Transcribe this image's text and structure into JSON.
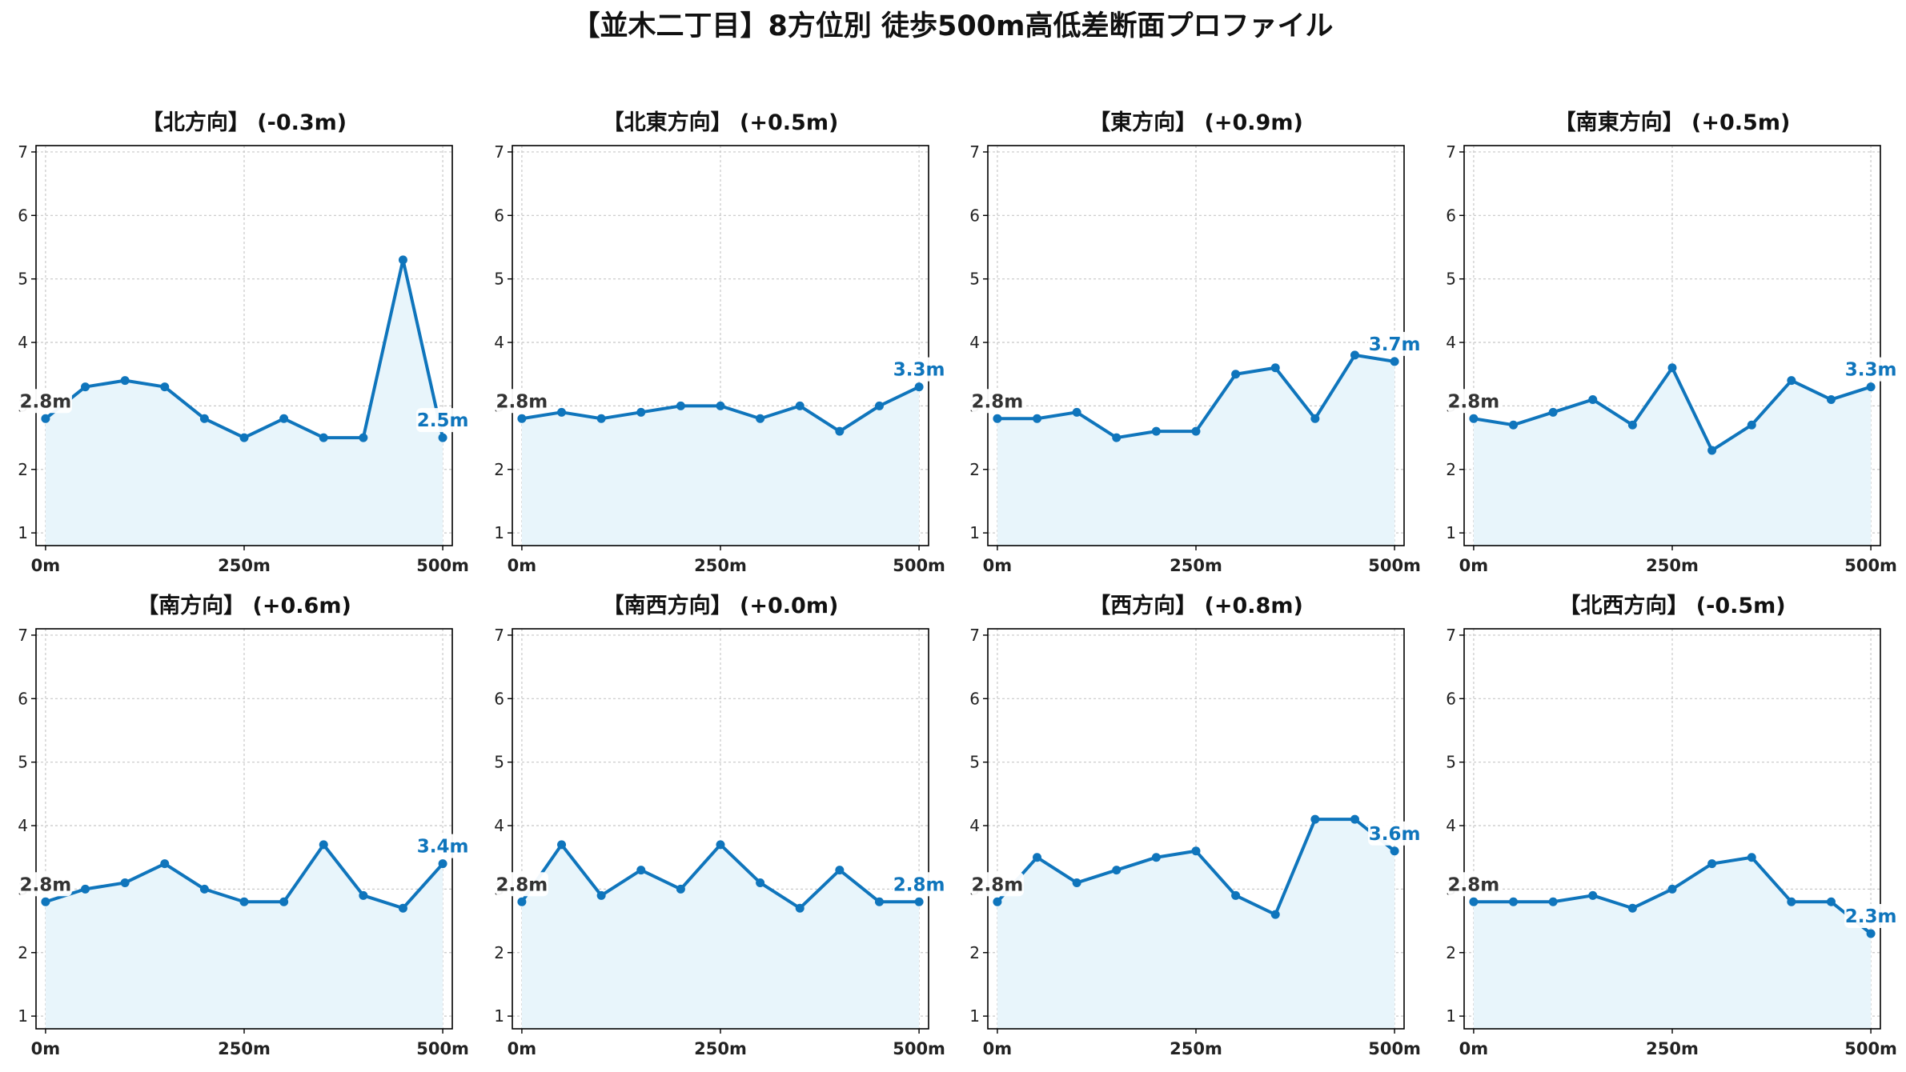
{
  "figure_title": "【並木二丁目】8方位別 徒歩500m高低差断面プロファイル",
  "colors": {
    "line": "#0f75bc",
    "fill": "#e8f5fb",
    "grid": "#c8c8c8",
    "axis": "#000000"
  },
  "chart_data": [
    {
      "type": "area",
      "title": "【北方向】 (-0.3m)",
      "x": [
        0,
        50,
        100,
        150,
        200,
        250,
        300,
        350,
        400,
        450,
        500
      ],
      "y": [
        2.8,
        3.3,
        3.4,
        3.3,
        2.8,
        2.5,
        2.8,
        2.5,
        2.5,
        5.3,
        2.5
      ],
      "xticks": [
        "0m",
        "250m",
        "500m"
      ],
      "yticks": [
        1,
        2,
        3,
        4,
        5,
        6,
        7
      ],
      "ylim": [
        0.8,
        7.1
      ],
      "xlim": [
        -12,
        512
      ],
      "start_label": "2.8m",
      "end_label": "2.5m",
      "grid": true
    },
    {
      "type": "area",
      "title": "【北東方向】 (+0.5m)",
      "x": [
        0,
        50,
        100,
        150,
        200,
        250,
        300,
        350,
        400,
        450,
        500
      ],
      "y": [
        2.8,
        2.9,
        2.8,
        2.9,
        3.0,
        3.0,
        2.8,
        3.0,
        2.6,
        3.0,
        3.3
      ],
      "xticks": [
        "0m",
        "250m",
        "500m"
      ],
      "yticks": [
        1,
        2,
        3,
        4,
        5,
        6,
        7
      ],
      "ylim": [
        0.8,
        7.1
      ],
      "xlim": [
        -12,
        512
      ],
      "start_label": "2.8m",
      "end_label": "3.3m",
      "grid": true
    },
    {
      "type": "area",
      "title": "【東方向】 (+0.9m)",
      "x": [
        0,
        50,
        100,
        150,
        200,
        250,
        300,
        350,
        400,
        450,
        500
      ],
      "y": [
        2.8,
        2.8,
        2.9,
        2.5,
        2.6,
        2.6,
        3.5,
        3.6,
        2.8,
        3.8,
        3.7
      ],
      "xticks": [
        "0m",
        "250m",
        "500m"
      ],
      "yticks": [
        1,
        2,
        3,
        4,
        5,
        6,
        7
      ],
      "ylim": [
        0.8,
        7.1
      ],
      "xlim": [
        -12,
        512
      ],
      "start_label": "2.8m",
      "end_label": "3.7m",
      "grid": true
    },
    {
      "type": "area",
      "title": "【南東方向】 (+0.5m)",
      "x": [
        0,
        50,
        100,
        150,
        200,
        250,
        300,
        350,
        400,
        450,
        500
      ],
      "y": [
        2.8,
        2.7,
        2.9,
        3.1,
        2.7,
        3.6,
        2.3,
        2.7,
        3.4,
        3.1,
        3.3
      ],
      "xticks": [
        "0m",
        "250m",
        "500m"
      ],
      "yticks": [
        1,
        2,
        3,
        4,
        5,
        6,
        7
      ],
      "ylim": [
        0.8,
        7.1
      ],
      "xlim": [
        -12,
        512
      ],
      "start_label": "2.8m",
      "end_label": "3.3m",
      "grid": true
    },
    {
      "type": "area",
      "title": "【南方向】 (+0.6m)",
      "x": [
        0,
        50,
        100,
        150,
        200,
        250,
        300,
        350,
        400,
        450,
        500
      ],
      "y": [
        2.8,
        3.0,
        3.1,
        3.4,
        3.0,
        2.8,
        2.8,
        3.7,
        2.9,
        2.7,
        3.4
      ],
      "xticks": [
        "0m",
        "250m",
        "500m"
      ],
      "yticks": [
        1,
        2,
        3,
        4,
        5,
        6,
        7
      ],
      "ylim": [
        0.8,
        7.1
      ],
      "xlim": [
        -12,
        512
      ],
      "start_label": "2.8m",
      "end_label": "3.4m",
      "grid": true
    },
    {
      "type": "area",
      "title": "【南西方向】 (+0.0m)",
      "x": [
        0,
        50,
        100,
        150,
        200,
        250,
        300,
        350,
        400,
        450,
        500
      ],
      "y": [
        2.8,
        3.7,
        2.9,
        3.3,
        3.0,
        3.7,
        3.1,
        2.7,
        3.3,
        2.8,
        2.8
      ],
      "xticks": [
        "0m",
        "250m",
        "500m"
      ],
      "yticks": [
        1,
        2,
        3,
        4,
        5,
        6,
        7
      ],
      "ylim": [
        0.8,
        7.1
      ],
      "xlim": [
        -12,
        512
      ],
      "start_label": "2.8m",
      "end_label": "2.8m",
      "grid": true
    },
    {
      "type": "area",
      "title": "【西方向】 (+0.8m)",
      "x": [
        0,
        50,
        100,
        150,
        200,
        250,
        300,
        350,
        400,
        450,
        500
      ],
      "y": [
        2.8,
        3.5,
        3.1,
        3.3,
        3.5,
        3.6,
        2.9,
        2.6,
        4.1,
        4.1,
        3.6
      ],
      "xticks": [
        "0m",
        "250m",
        "500m"
      ],
      "yticks": [
        1,
        2,
        3,
        4,
        5,
        6,
        7
      ],
      "ylim": [
        0.8,
        7.1
      ],
      "xlim": [
        -12,
        512
      ],
      "start_label": "2.8m",
      "end_label": "3.6m",
      "grid": true
    },
    {
      "type": "area",
      "title": "【北西方向】 (-0.5m)",
      "x": [
        0,
        50,
        100,
        150,
        200,
        250,
        300,
        350,
        400,
        450,
        500
      ],
      "y": [
        2.8,
        2.8,
        2.8,
        2.9,
        2.7,
        3.0,
        3.4,
        3.5,
        2.8,
        2.8,
        2.3
      ],
      "xticks": [
        "0m",
        "250m",
        "500m"
      ],
      "yticks": [
        1,
        2,
        3,
        4,
        5,
        6,
        7
      ],
      "ylim": [
        0.8,
        7.1
      ],
      "xlim": [
        -12,
        512
      ],
      "start_label": "2.8m",
      "end_label": "2.3m",
      "grid": true
    }
  ]
}
